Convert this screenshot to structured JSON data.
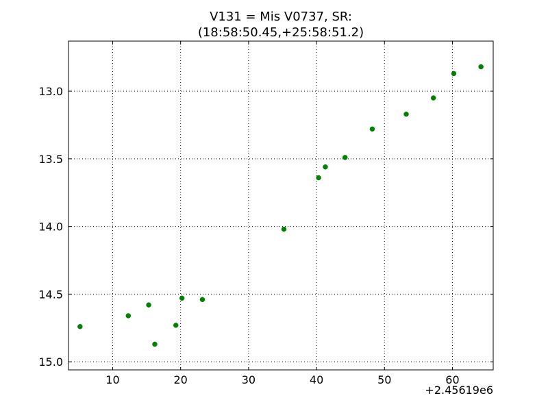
{
  "chart_data": {
    "type": "scatter",
    "title_lines": [
      "V131 = Mis V0737, SR:",
      "(18:58:50.45,+25:58:51.2)"
    ],
    "xlabel": "",
    "ylabel": "",
    "x_offset_label": "+2.45619e6",
    "xlim": [
      3.5,
      66.0
    ],
    "ylim": [
      15.06,
      12.63
    ],
    "y_inverted": true,
    "grid": true,
    "x_ticks": [
      10,
      20,
      30,
      40,
      50,
      60
    ],
    "x_tick_labels": [
      "10",
      "20",
      "30",
      "40",
      "50",
      "60"
    ],
    "y_ticks": [
      13.0,
      13.5,
      14.0,
      14.5,
      15.0
    ],
    "y_tick_labels": [
      "13.0",
      "13.5",
      "14.0",
      "14.5",
      "15.0"
    ],
    "marker_color": "#008000",
    "points": [
      {
        "x": 5.2,
        "y": 14.74
      },
      {
        "x": 12.3,
        "y": 14.66
      },
      {
        "x": 15.3,
        "y": 14.58
      },
      {
        "x": 16.2,
        "y": 14.87
      },
      {
        "x": 19.3,
        "y": 14.73
      },
      {
        "x": 20.2,
        "y": 14.53
      },
      {
        "x": 23.2,
        "y": 14.54
      },
      {
        "x": 35.2,
        "y": 14.02
      },
      {
        "x": 40.3,
        "y": 13.64
      },
      {
        "x": 41.3,
        "y": 13.56
      },
      {
        "x": 44.2,
        "y": 13.49
      },
      {
        "x": 48.2,
        "y": 13.28
      },
      {
        "x": 53.2,
        "y": 13.17
      },
      {
        "x": 57.2,
        "y": 13.05
      },
      {
        "x": 60.2,
        "y": 12.87
      },
      {
        "x": 64.2,
        "y": 12.82
      }
    ]
  }
}
